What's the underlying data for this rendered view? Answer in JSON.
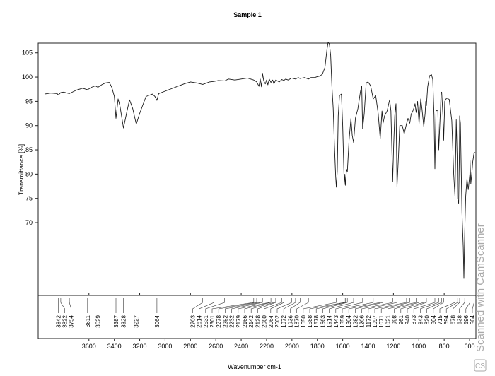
{
  "chart_data": {
    "type": "line",
    "title": "Sample 1",
    "xlabel": "Wavenumber cm-1",
    "ylabel": "Transmittance [%]",
    "xlim": [
      4000,
      550
    ],
    "ylim": [
      55,
      107
    ],
    "x_reversed": true,
    "x_ticks": [
      3600,
      3200,
      2800,
      2400,
      2000,
      1600,
      1200,
      800
    ],
    "x_tick_labels": [
      "3600",
      "3200",
      "2800",
      "2400",
      "2000",
      "1600",
      "1200",
      "800"
    ],
    "bottom_axis_ticks": [
      3600,
      3400,
      3200,
      3000,
      2800,
      2600,
      2400,
      2200,
      2000,
      1800,
      1600,
      1400,
      1200,
      1000,
      800,
      600
    ],
    "bottom_axis_tick_labels": [
      "3600",
      "3400",
      "3200",
      "3000",
      "2800",
      "2600",
      "2400",
      "2200",
      "2000",
      "1800",
      "1600",
      "1400",
      "1200",
      "1000",
      "800",
      "600"
    ],
    "y_ticks": [
      70,
      75,
      80,
      85,
      90,
      95,
      100,
      105
    ],
    "y_tick_labels": [
      "70",
      "75",
      "80",
      "85",
      "90",
      "95",
      "100",
      "105"
    ],
    "grid": false,
    "series": [
      {
        "color": "#1a1a1a",
        "points": [
          [
            3950,
            96.5
          ],
          [
            3900,
            96.7
          ],
          [
            3850,
            96.6
          ],
          [
            3842,
            96.3
          ],
          [
            3822,
            96.8
          ],
          [
            3800,
            96.9
          ],
          [
            3754,
            96.6
          ],
          [
            3700,
            97.3
          ],
          [
            3650,
            97.7
          ],
          [
            3611,
            97.4
          ],
          [
            3580,
            97.9
          ],
          [
            3550,
            98.2
          ],
          [
            3529,
            97.9
          ],
          [
            3500,
            98.4
          ],
          [
            3470,
            98.8
          ],
          [
            3440,
            98.9
          ],
          [
            3420,
            97.9
          ],
          [
            3400,
            96.0
          ],
          [
            3387,
            91.5
          ],
          [
            3370,
            95.5
          ],
          [
            3355,
            94.0
          ],
          [
            3328,
            89.5
          ],
          [
            3300,
            93.0
          ],
          [
            3280,
            95.3
          ],
          [
            3255,
            93.5
          ],
          [
            3227,
            90.3
          ],
          [
            3200,
            92.5
          ],
          [
            3150,
            96.0
          ],
          [
            3100,
            96.5
          ],
          [
            3080,
            96.0
          ],
          [
            3064,
            95.2
          ],
          [
            3050,
            96.6
          ],
          [
            3000,
            97.1
          ],
          [
            2950,
            97.6
          ],
          [
            2900,
            98.1
          ],
          [
            2850,
            98.6
          ],
          [
            2800,
            99.0
          ],
          [
            2750,
            98.8
          ],
          [
            2703,
            98.5
          ],
          [
            2650,
            99.0
          ],
          [
            2614,
            99.1
          ],
          [
            2580,
            99.3
          ],
          [
            2531,
            99.2
          ],
          [
            2500,
            99.6
          ],
          [
            2450,
            99.4
          ],
          [
            2400,
            99.6
          ],
          [
            2350,
            99.8
          ],
          [
            2301,
            99.4
          ],
          [
            2278,
            99.0
          ],
          [
            2260,
            98.1
          ],
          [
            2250,
            99.6
          ],
          [
            2240,
            98.0
          ],
          [
            2232,
            100.8
          ],
          [
            2222,
            99.2
          ],
          [
            2210,
            98.6
          ],
          [
            2200,
            99.4
          ],
          [
            2190,
            98.4
          ],
          [
            2179,
            99.6
          ],
          [
            2166,
            98.9
          ],
          [
            2152,
            99.4
          ],
          [
            2142,
            98.6
          ],
          [
            2128,
            99.4
          ],
          [
            2100,
            99.0
          ],
          [
            2080,
            99.5
          ],
          [
            2064,
            99.3
          ],
          [
            2050,
            99.6
          ],
          [
            2030,
            99.4
          ],
          [
            2002,
            99.8
          ],
          [
            1972,
            99.6
          ],
          [
            1950,
            99.9
          ],
          [
            1936,
            99.7
          ],
          [
            1900,
            99.9
          ],
          [
            1870,
            99.6
          ],
          [
            1850,
            99.9
          ],
          [
            1820,
            99.9
          ],
          [
            1800,
            100.1
          ],
          [
            1780,
            100.2
          ],
          [
            1760,
            100.6
          ],
          [
            1740,
            102.0
          ],
          [
            1725,
            105.5
          ],
          [
            1715,
            107.2
          ],
          [
            1705,
            106.8
          ],
          [
            1695,
            104.5
          ],
          [
            1685,
            98.0
          ],
          [
            1675,
            93.5
          ],
          [
            1665,
            86.0
          ],
          [
            1655,
            79.5
          ],
          [
            1650,
            77.3
          ],
          [
            1643,
            80.5
          ],
          [
            1635,
            92.0
          ],
          [
            1625,
            96.2
          ],
          [
            1610,
            96.5
          ],
          [
            1600,
            90.0
          ],
          [
            1588,
            77.8
          ],
          [
            1583,
            80.0
          ],
          [
            1578,
            77.7
          ],
          [
            1570,
            81.0
          ],
          [
            1563,
            80.5
          ],
          [
            1550,
            87.0
          ],
          [
            1535,
            91.5
          ],
          [
            1525,
            88.0
          ],
          [
            1514,
            86.5
          ],
          [
            1500,
            91.5
          ],
          [
            1480,
            93.5
          ],
          [
            1460,
            97.0
          ],
          [
            1450,
            98.2
          ],
          [
            1443,
            89.3
          ],
          [
            1430,
            92.5
          ],
          [
            1415,
            98.8
          ],
          [
            1400,
            99.0
          ],
          [
            1380,
            98.2
          ],
          [
            1359,
            95.5
          ],
          [
            1340,
            96.2
          ],
          [
            1320,
            92.5
          ],
          [
            1304,
            87.3
          ],
          [
            1290,
            93.0
          ],
          [
            1282,
            90.5
          ],
          [
            1270,
            92.0
          ],
          [
            1250,
            93.0
          ],
          [
            1230,
            95.3
          ],
          [
            1220,
            93.0
          ],
          [
            1206,
            78.5
          ],
          [
            1198,
            86.0
          ],
          [
            1190,
            92.0
          ],
          [
            1180,
            94.5
          ],
          [
            1172,
            77.3
          ],
          [
            1160,
            84.0
          ],
          [
            1150,
            90.0
          ],
          [
            1130,
            90.0
          ],
          [
            1115,
            88.3
          ],
          [
            1097,
            90.4
          ],
          [
            1085,
            91.5
          ],
          [
            1071,
            90.5
          ],
          [
            1060,
            92.4
          ],
          [
            1050,
            92.8
          ],
          [
            1040,
            93.5
          ],
          [
            1030,
            94.5
          ],
          [
            1021,
            92.7
          ],
          [
            1010,
            95.0
          ],
          [
            998,
            90.4
          ],
          [
            985,
            95.5
          ],
          [
            975,
            93.5
          ],
          [
            961,
            89.8
          ],
          [
            950,
            92.5
          ],
          [
            945,
            95.0
          ],
          [
            940,
            94.1
          ],
          [
            930,
            98.0
          ],
          [
            915,
            100.3
          ],
          [
            900,
            100.5
          ],
          [
            890,
            99.5
          ],
          [
            880,
            92.0
          ],
          [
            873,
            81.1
          ],
          [
            865,
            93.0
          ],
          [
            850,
            93.2
          ],
          [
            843,
            85.0
          ],
          [
            830,
            93.0
          ],
          [
            825,
            96.8
          ],
          [
            820,
            96.9
          ],
          [
            810,
            92.0
          ],
          [
            804,
            87.0
          ],
          [
            795,
            95.0
          ],
          [
            780,
            95.7
          ],
          [
            760,
            95.4
          ],
          [
            740,
            91.0
          ],
          [
            725,
            80.0
          ],
          [
            715,
            75.5
          ],
          [
            705,
            91.2
          ],
          [
            698,
            84.0
          ],
          [
            694,
            75.0
          ],
          [
            686,
            74.0
          ],
          [
            680,
            85.0
          ],
          [
            678,
            92.0
          ],
          [
            672,
            90.5
          ],
          [
            660,
            72.0
          ],
          [
            650,
            65.0
          ],
          [
            645,
            58.5
          ],
          [
            638,
            68.0
          ],
          [
            630,
            75.5
          ],
          [
            620,
            79.0
          ],
          [
            610,
            76.8
          ],
          [
            598,
            80.0
          ],
          [
            596,
            82.8
          ],
          [
            590,
            78.0
          ],
          [
            580,
            80.8
          ],
          [
            575,
            82.5
          ],
          [
            564,
            84.5
          ],
          [
            555,
            84.4
          ]
        ]
      }
    ],
    "peak_labels": [
      "3842",
      "3822",
      "3754",
      "3611",
      "3529",
      "3387",
      "3328",
      "3227",
      "3064",
      "2703",
      "2614",
      "2531",
      "2301",
      "2278",
      "2252",
      "2232",
      "2179",
      "2166",
      "2142",
      "2128",
      "2080",
      "2064",
      "2002",
      "1972",
      "1936",
      "1870",
      "1650",
      "1588",
      "1578",
      "1563",
      "1514",
      "1443",
      "1359",
      "1304",
      "1282",
      "1206",
      "1172",
      "1097",
      "1071",
      "1021",
      "998",
      "961",
      "940",
      "873",
      "843",
      "820",
      "804",
      "715",
      "694",
      "678",
      "638",
      "596",
      "564"
    ]
  },
  "watermark": "Scanned with CamScanner",
  "watermark_badge": "CS"
}
